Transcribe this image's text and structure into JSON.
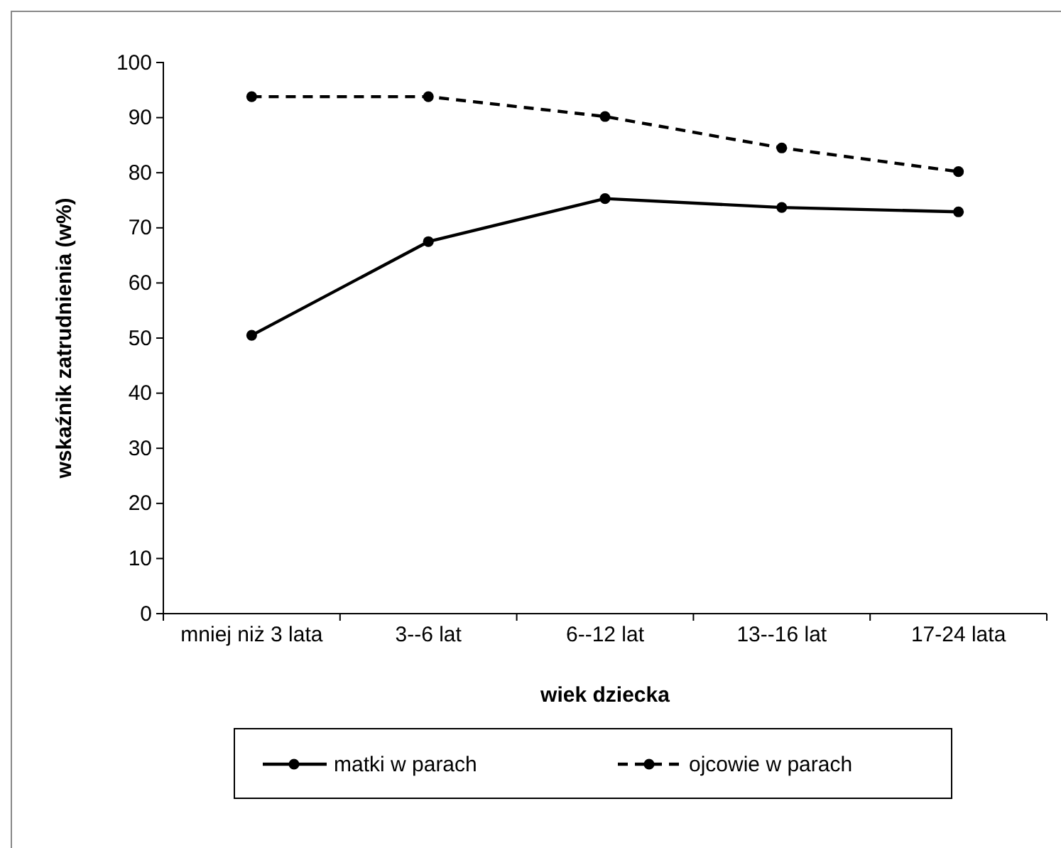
{
  "chart_data": {
    "type": "line",
    "xlabel": "wiek dziecka",
    "ylabel": "wskaźnik zatrudnienia  (w%)",
    "categories": [
      "mniej niż 3 lata",
      "3--6 lat",
      "6--12 lat",
      "13--16 lat",
      "17-24 lata"
    ],
    "series": [
      {
        "name": "matki w parach",
        "color": "#000000",
        "line_style": "solid",
        "values": [
          50.5,
          67.5,
          75.3,
          73.7,
          72.9
        ]
      },
      {
        "name": "ojcowie w parach",
        "color": "#000000",
        "line_style": "dashed",
        "values": [
          93.8,
          93.8,
          90.2,
          84.5,
          80.2
        ]
      }
    ],
    "ylim": [
      0,
      100
    ],
    "yticks": [
      0,
      10,
      20,
      30,
      40,
      50,
      60,
      70,
      80,
      90,
      100
    ],
    "marker": "circle",
    "legend": "bottom",
    "grid": false
  }
}
